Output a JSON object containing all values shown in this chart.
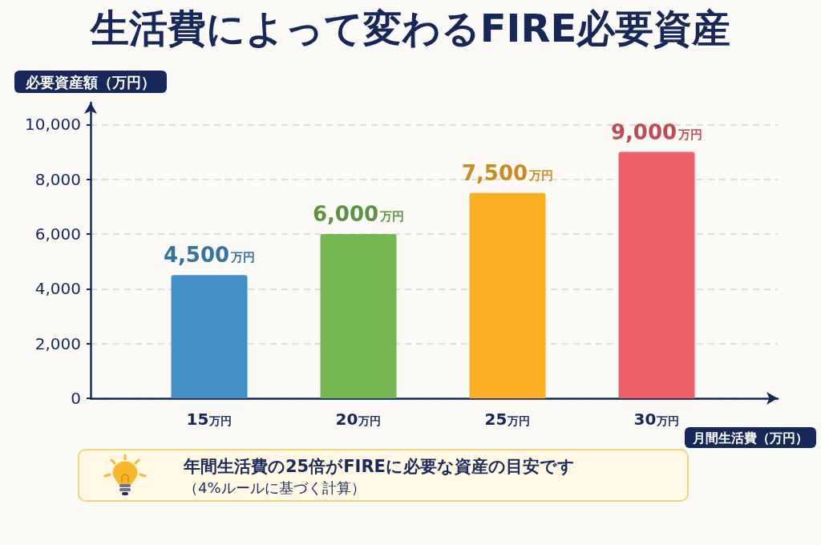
{
  "chart_data": {
    "type": "bar",
    "title": "生活費によって変わるFIRE必要資産",
    "ylabel": "必要資産額（万円）",
    "xlabel": "月間生活費（万円）",
    "categories": [
      "15万円",
      "20万円",
      "25万円",
      "30万円"
    ],
    "values": [
      4500,
      6000,
      7500,
      9000
    ],
    "value_labels": [
      "4,500万円",
      "6,000万円",
      "7,500万円",
      "9,000万円"
    ],
    "colors": [
      "#4390c9",
      "#74b752",
      "#fbb024",
      "#ef5f6a"
    ],
    "ylim": [
      0,
      10800
    ],
    "yticks": [
      0,
      {
        "value": 2000,
        "label": "2,000"
      },
      {
        "value": 4000,
        "label": "4,000"
      },
      {
        "value": 6000,
        "label": "6,000"
      },
      {
        "value": 8000,
        "label": "8,000"
      },
      {
        "value": 10000,
        "label": "10,000"
      }
    ],
    "grid": "y",
    "annotations": [
      "年間生活費の25倍がFIREに必要な資産の目安です",
      "（4%ルールに基づく計算）"
    ]
  }
}
